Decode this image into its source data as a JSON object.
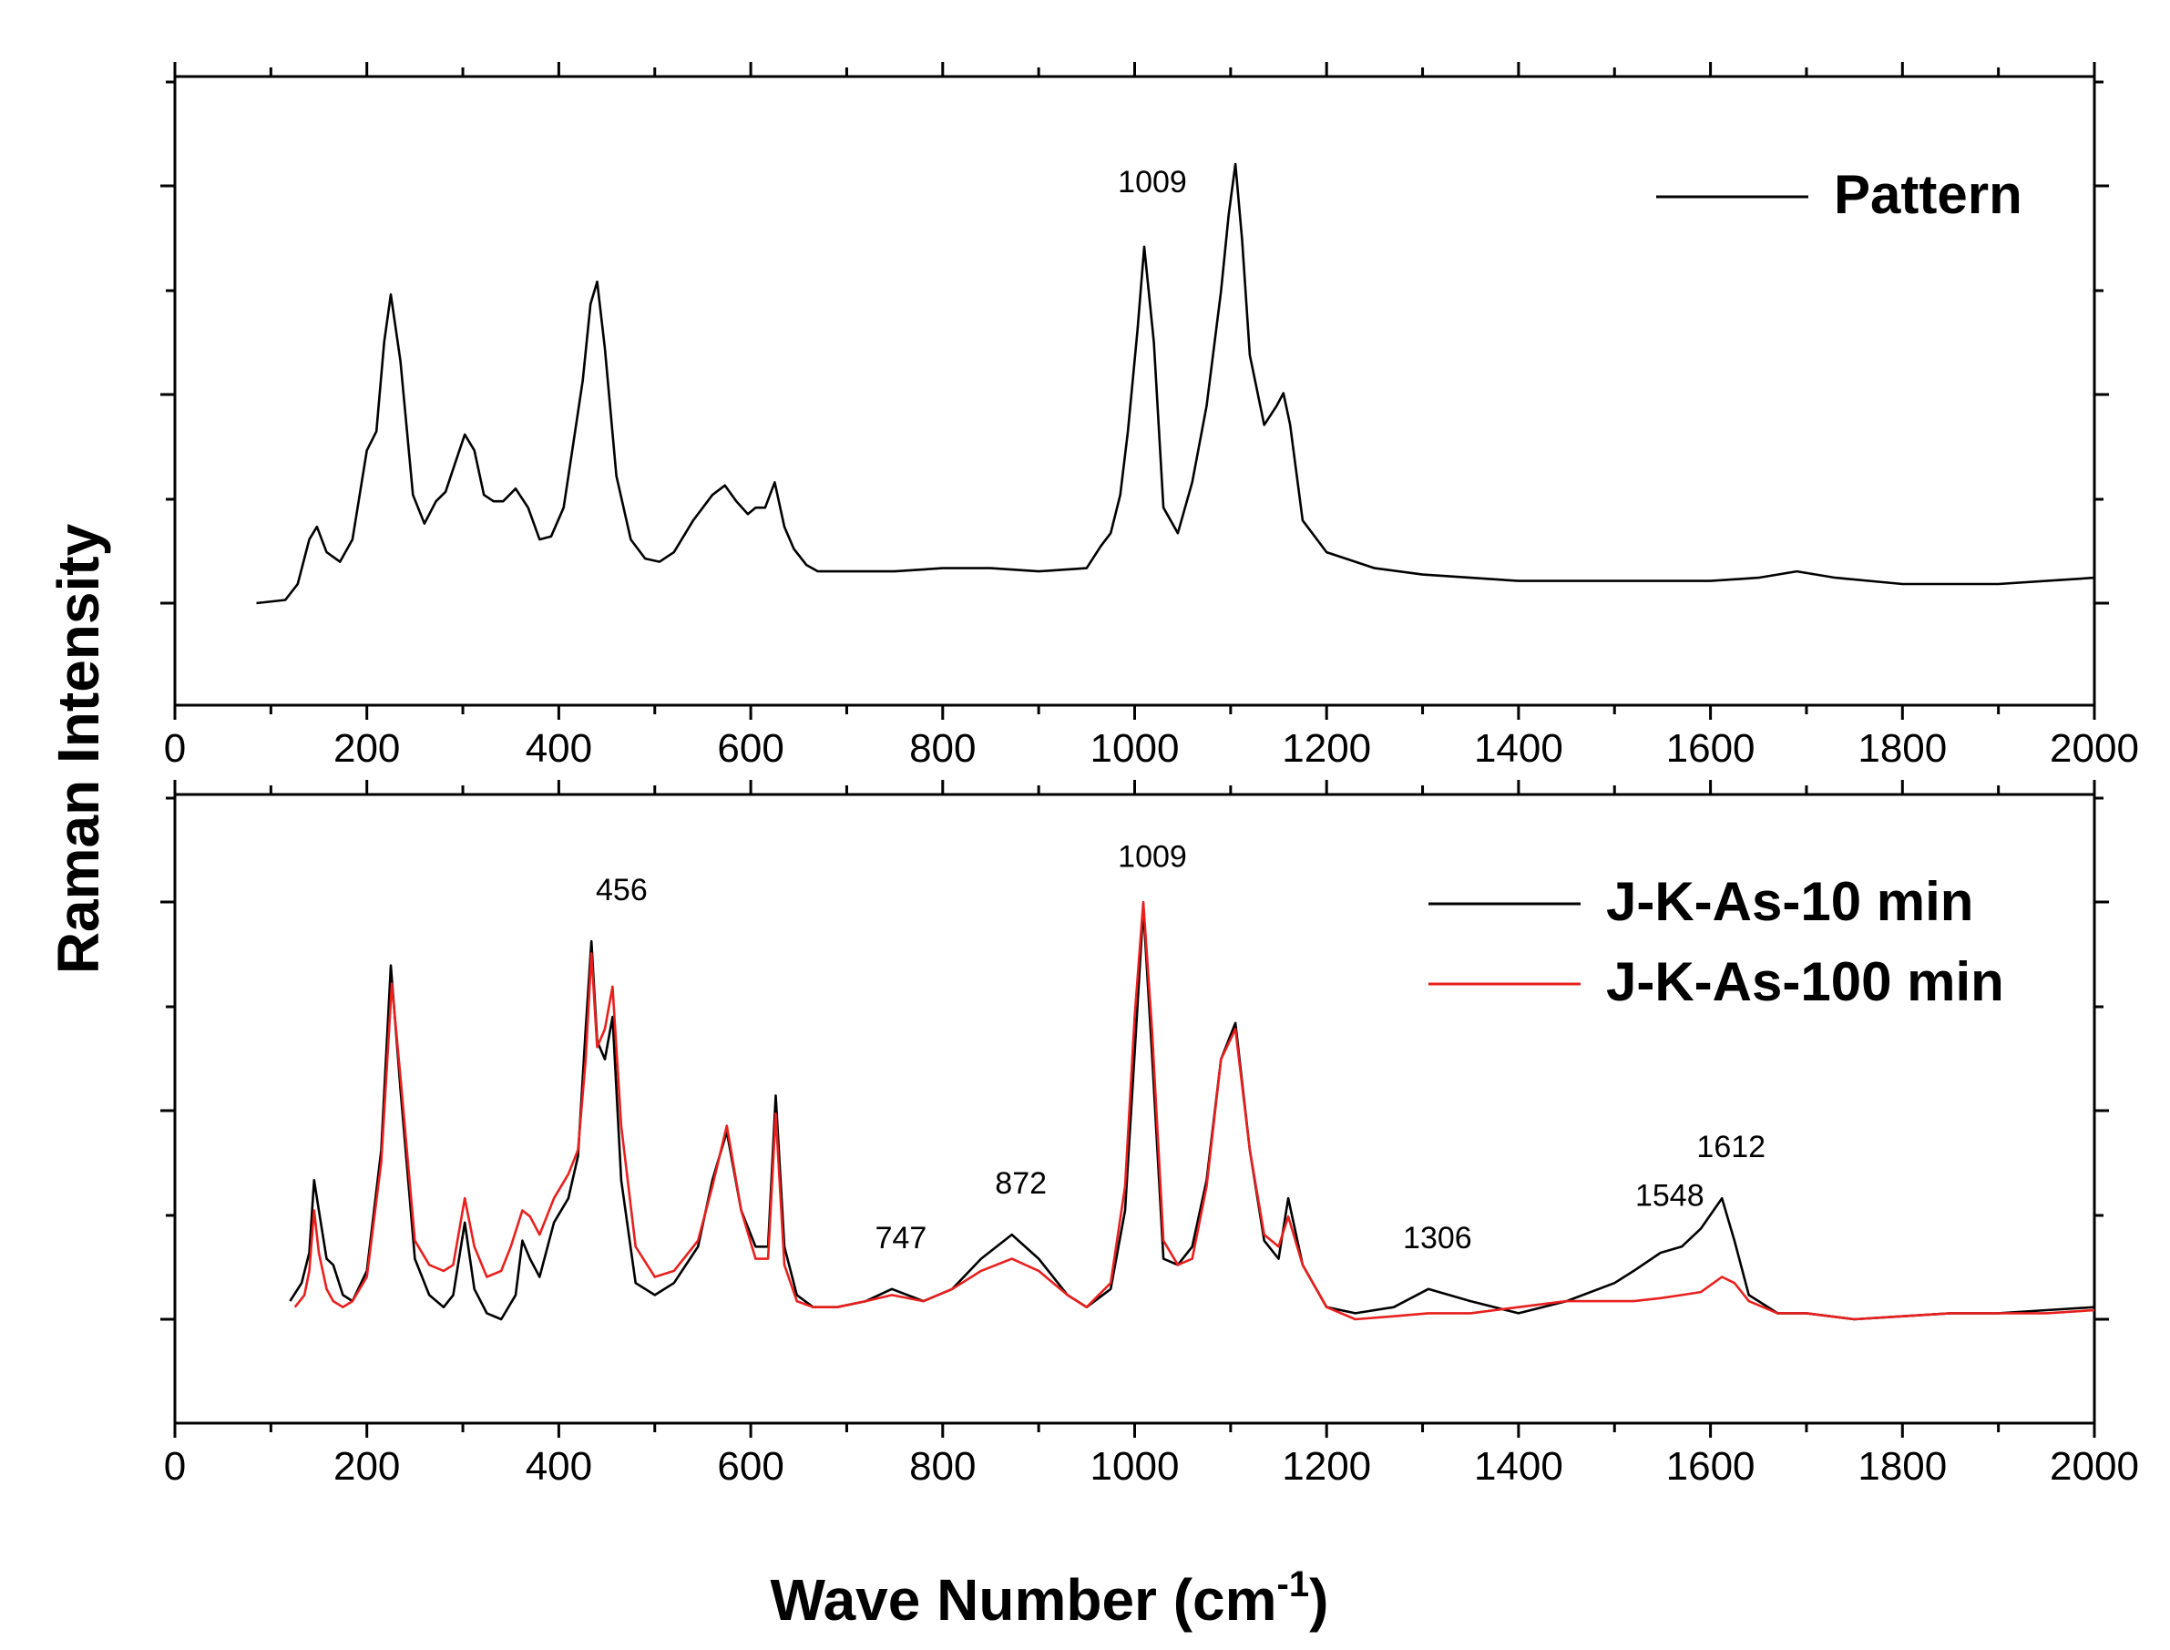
{
  "chart_data": [
    {
      "type": "line",
      "title": "",
      "xlabel": "",
      "ylabel": "Raman Intensity",
      "xlim": [
        0,
        2000
      ],
      "ylim": [
        0,
        1
      ],
      "x_ticks": [
        "0",
        "200",
        "400",
        "600",
        "800",
        "1000",
        "1200",
        "1400",
        "1600",
        "1800",
        "2000"
      ],
      "grid": false,
      "legend": "top-right",
      "series": [
        {
          "name": "Pattern",
          "color": "#000000",
          "x": [
            85,
            115,
            128,
            140,
            148,
            158,
            172,
            185,
            200,
            210,
            218,
            225,
            235,
            248,
            260,
            272,
            282,
            292,
            302,
            312,
            322,
            332,
            342,
            355,
            368,
            380,
            392,
            405,
            415,
            425,
            433,
            440,
            448,
            460,
            475,
            490,
            505,
            520,
            540,
            560,
            573,
            585,
            597,
            605,
            615,
            625,
            635,
            645,
            658,
            670,
            690,
            750,
            800,
            850,
            900,
            950,
            965,
            975,
            985,
            993,
            1003,
            1010,
            1020,
            1030,
            1045,
            1060,
            1075,
            1090,
            1098,
            1105,
            1112,
            1120,
            1135,
            1148,
            1155,
            1162,
            1175,
            1200,
            1250,
            1300,
            1400,
            1500,
            1600,
            1650,
            1690,
            1730,
            1800,
            1900,
            2000
          ],
          "y": [
            0.17,
            0.175,
            0.2,
            0.27,
            0.29,
            0.25,
            0.235,
            0.27,
            0.41,
            0.44,
            0.58,
            0.655,
            0.55,
            0.34,
            0.295,
            0.33,
            0.345,
            0.39,
            0.435,
            0.41,
            0.34,
            0.33,
            0.33,
            0.35,
            0.32,
            0.27,
            0.275,
            0.32,
            0.42,
            0.52,
            0.64,
            0.675,
            0.57,
            0.37,
            0.27,
            0.24,
            0.235,
            0.25,
            0.3,
            0.34,
            0.355,
            0.33,
            0.31,
            0.32,
            0.32,
            0.36,
            0.29,
            0.255,
            0.23,
            0.22,
            0.22,
            0.22,
            0.225,
            0.225,
            0.22,
            0.225,
            0.26,
            0.28,
            0.34,
            0.44,
            0.6,
            0.73,
            0.58,
            0.32,
            0.28,
            0.36,
            0.48,
            0.66,
            0.78,
            0.86,
            0.74,
            0.56,
            0.45,
            0.48,
            0.5,
            0.45,
            0.3,
            0.25,
            0.225,
            0.215,
            0.205,
            0.205,
            0.205,
            0.21,
            0.22,
            0.21,
            0.2,
            0.2,
            0.21
          ]
        },
        {
          "name": "J-K-As-10 min",
          "color": "#000000",
          "x": [
            120,
            132,
            140,
            145,
            150,
            158,
            165,
            175,
            185,
            200,
            215,
            225,
            235,
            250,
            265,
            280,
            290,
            302,
            312,
            325,
            340,
            355,
            362,
            370,
            380,
            395,
            410,
            420,
            428,
            434,
            440,
            448,
            456,
            465,
            480,
            500,
            520,
            545,
            560,
            575,
            590,
            605,
            618,
            626,
            635,
            648,
            665,
            690,
            720,
            747,
            780,
            810,
            840,
            872,
            900,
            930,
            950,
            975,
            990,
            1000,
            1009,
            1018,
            1030,
            1045,
            1060,
            1075,
            1090,
            1105,
            1120,
            1135,
            1150,
            1160,
            1175,
            1200,
            1230,
            1270,
            1306,
            1350,
            1400,
            1450,
            1500,
            1520,
            1548,
            1570,
            1590,
            1612,
            1625,
            1640,
            1670,
            1700,
            1750,
            1800,
            1850,
            1900,
            1950,
            2000
          ],
          "y": [
            0.05,
            0.08,
            0.13,
            0.25,
            0.2,
            0.12,
            0.11,
            0.06,
            0.05,
            0.1,
            0.3,
            0.605,
            0.4,
            0.12,
            0.06,
            0.04,
            0.06,
            0.18,
            0.07,
            0.03,
            0.02,
            0.06,
            0.15,
            0.12,
            0.09,
            0.18,
            0.22,
            0.29,
            0.5,
            0.645,
            0.48,
            0.45,
            0.52,
            0.25,
            0.08,
            0.06,
            0.08,
            0.14,
            0.25,
            0.33,
            0.2,
            0.14,
            0.14,
            0.39,
            0.14,
            0.06,
            0.04,
            0.04,
            0.05,
            0.07,
            0.05,
            0.07,
            0.12,
            0.16,
            0.12,
            0.06,
            0.04,
            0.07,
            0.2,
            0.46,
            0.7,
            0.46,
            0.12,
            0.11,
            0.14,
            0.25,
            0.45,
            0.51,
            0.3,
            0.15,
            0.12,
            0.22,
            0.11,
            0.04,
            0.03,
            0.04,
            0.07,
            0.05,
            0.03,
            0.05,
            0.08,
            0.1,
            0.13,
            0.14,
            0.17,
            0.22,
            0.15,
            0.06,
            0.03,
            0.03,
            0.02,
            0.025,
            0.03,
            0.03,
            0.035,
            0.04
          ]
        },
        {
          "name": "J-K-As-100 min",
          "color": "#e8201e",
          "x": [
            125,
            135,
            140,
            145,
            150,
            158,
            165,
            175,
            185,
            200,
            215,
            226,
            235,
            250,
            265,
            280,
            290,
            302,
            312,
            325,
            340,
            350,
            362,
            370,
            380,
            395,
            410,
            420,
            428,
            434,
            440,
            448,
            456,
            465,
            480,
            500,
            520,
            545,
            560,
            575,
            590,
            605,
            618,
            626,
            635,
            648,
            665,
            690,
            720,
            747,
            780,
            810,
            840,
            872,
            900,
            930,
            950,
            975,
            990,
            1000,
            1009,
            1018,
            1030,
            1045,
            1060,
            1075,
            1090,
            1105,
            1120,
            1135,
            1150,
            1160,
            1175,
            1200,
            1230,
            1270,
            1306,
            1350,
            1400,
            1450,
            1500,
            1520,
            1548,
            1570,
            1590,
            1612,
            1625,
            1640,
            1670,
            1700,
            1750,
            1800,
            1850,
            1900,
            1950,
            2000
          ],
          "y": [
            0.04,
            0.06,
            0.1,
            0.2,
            0.13,
            0.07,
            0.05,
            0.04,
            0.05,
            0.09,
            0.28,
            0.575,
            0.42,
            0.15,
            0.11,
            0.1,
            0.11,
            0.22,
            0.14,
            0.09,
            0.1,
            0.14,
            0.2,
            0.19,
            0.16,
            0.22,
            0.26,
            0.3,
            0.45,
            0.625,
            0.47,
            0.5,
            0.57,
            0.34,
            0.14,
            0.09,
            0.1,
            0.15,
            0.24,
            0.34,
            0.2,
            0.12,
            0.12,
            0.36,
            0.11,
            0.05,
            0.04,
            0.04,
            0.05,
            0.06,
            0.05,
            0.07,
            0.1,
            0.12,
            0.1,
            0.06,
            0.04,
            0.08,
            0.24,
            0.52,
            0.71,
            0.5,
            0.15,
            0.11,
            0.12,
            0.24,
            0.45,
            0.5,
            0.3,
            0.16,
            0.14,
            0.19,
            0.11,
            0.04,
            0.02,
            0.025,
            0.03,
            0.03,
            0.04,
            0.05,
            0.05,
            0.05,
            0.055,
            0.06,
            0.065,
            0.09,
            0.08,
            0.05,
            0.03,
            0.03,
            0.02,
            0.025,
            0.03,
            0.03,
            0.03,
            0.035
          ]
        }
      ]
    }
  ],
  "top_panel": {
    "annotations": [
      {
        "x": 1009,
        "text": "1009"
      }
    ],
    "legend": [
      {
        "label": "Pattern",
        "color": "#000000"
      }
    ]
  },
  "bottom_panel": {
    "annotations": [
      {
        "x": 456,
        "text": "456"
      },
      {
        "x": 747,
        "text": "747"
      },
      {
        "x": 872,
        "text": "872"
      },
      {
        "x": 1009,
        "text": "1009"
      },
      {
        "x": 1306,
        "text": "1306"
      },
      {
        "x": 1548,
        "text": "1548"
      },
      {
        "x": 1612,
        "text": "1612"
      }
    ],
    "legend": [
      {
        "label": "J-K-As-10 min",
        "color": "#000000"
      },
      {
        "label": "J-K-As-100 min",
        "color": "#e8201e"
      }
    ]
  },
  "axes": {
    "xlabel_main": "Wave Number (cm",
    "xlabel_sup": "-1",
    "xlabel_close": ")",
    "ylabel": "Raman Intensity"
  }
}
